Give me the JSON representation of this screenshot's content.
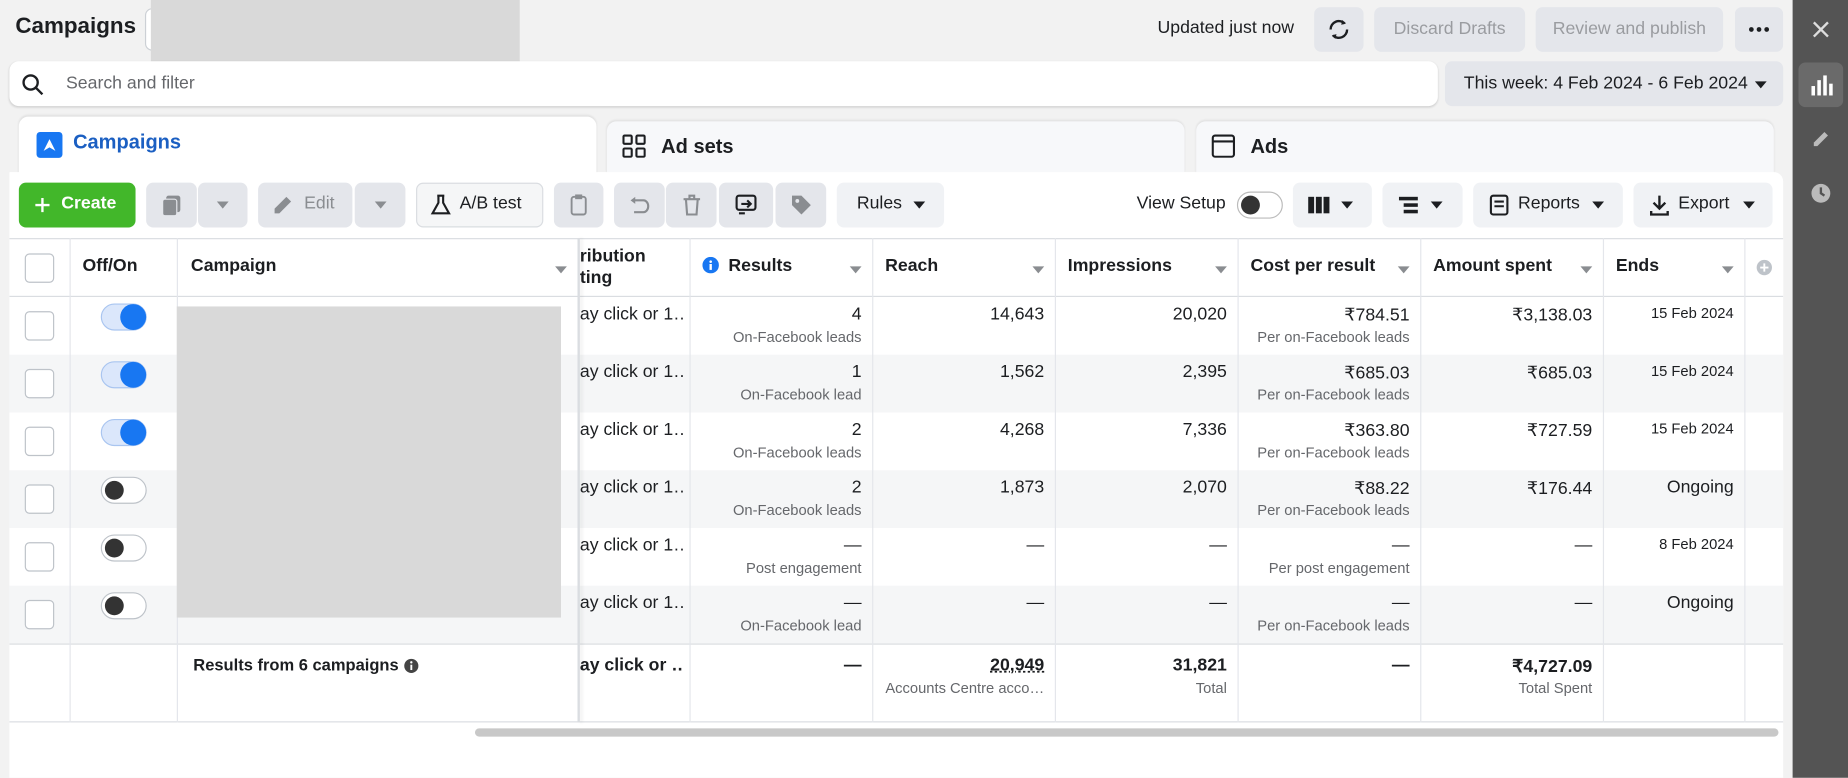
{
  "header": {
    "title": "Campaigns",
    "status": "Updated just now",
    "discard": "Discard Drafts",
    "publish": "Review and publish"
  },
  "search": {
    "placeholder": "Search and filter",
    "date_range": "This week: 4 Feb 2024 - 6 Feb 2024"
  },
  "tabs": [
    "Campaigns",
    "Ad sets",
    "Ads"
  ],
  "toolbar": {
    "create": "Create",
    "edit": "Edit",
    "ab_test": "A/B test",
    "rules": "Rules",
    "view_setup": "View Setup",
    "reports": "Reports",
    "export": "Export"
  },
  "table": {
    "columns": {
      "toggle": "Off/On",
      "campaign": "Campaign",
      "attribution": [
        "ribution",
        "ting"
      ],
      "results": "Results",
      "reach": "Reach",
      "impressions": "Impressions",
      "cost_per_result": "Cost per result",
      "amount_spent": "Amount spent",
      "ends": "Ends"
    },
    "rows": [
      {
        "on": true,
        "attribution": "ay click or 1…",
        "results": "4",
        "results_type": "On-Facebook leads",
        "reach": "14,643",
        "impressions": "20,020",
        "cost_per_result": "₹784.51",
        "cost_type": "Per on-Facebook leads",
        "amount_spent": "₹3,138.03",
        "ends": "15 Feb 2024",
        "ends_is_date": true
      },
      {
        "on": true,
        "attribution": "ay click or 1…",
        "results": "1",
        "results_type": "On-Facebook lead",
        "reach": "1,562",
        "impressions": "2,395",
        "cost_per_result": "₹685.03",
        "cost_type": "Per on-Facebook leads",
        "amount_spent": "₹685.03",
        "ends": "15 Feb 2024",
        "ends_is_date": true
      },
      {
        "on": true,
        "attribution": "ay click or 1…",
        "results": "2",
        "results_type": "On-Facebook leads",
        "reach": "4,268",
        "impressions": "7,336",
        "cost_per_result": "₹363.80",
        "cost_type": "Per on-Facebook leads",
        "amount_spent": "₹727.59",
        "ends": "15 Feb 2024",
        "ends_is_date": true
      },
      {
        "on": false,
        "attribution": "ay click or 1…",
        "results": "2",
        "results_type": "On-Facebook leads",
        "reach": "1,873",
        "impressions": "2,070",
        "cost_per_result": "₹88.22",
        "cost_type": "Per on-Facebook leads",
        "amount_spent": "₹176.44",
        "ends": "Ongoing",
        "ends_is_date": false
      },
      {
        "on": false,
        "attribution": "ay click or 1…",
        "results": "—",
        "results_type": "Post engagement",
        "reach": "—",
        "impressions": "—",
        "cost_per_result": "—",
        "cost_type": "Per post engagement",
        "amount_spent": "—",
        "ends": "8 Feb 2024",
        "ends_is_date": true
      },
      {
        "on": false,
        "attribution": "ay click or 1…",
        "results": "—",
        "results_type": "On-Facebook lead",
        "reach": "—",
        "impressions": "—",
        "cost_per_result": "—",
        "cost_type": "Per on-Facebook leads",
        "amount_spent": "—",
        "ends": "Ongoing",
        "ends_is_date": false
      }
    ],
    "footer": {
      "label": "Results from 6 campaigns",
      "attribution": "ay click or …",
      "results": "—",
      "reach": "20,949",
      "reach_note": "Accounts Centre acco…",
      "impressions": "31,821",
      "impressions_note": "Total",
      "cost_per_result": "—",
      "amount_spent": "₹4,727.09",
      "amount_spent_note": "Total Spent"
    }
  }
}
